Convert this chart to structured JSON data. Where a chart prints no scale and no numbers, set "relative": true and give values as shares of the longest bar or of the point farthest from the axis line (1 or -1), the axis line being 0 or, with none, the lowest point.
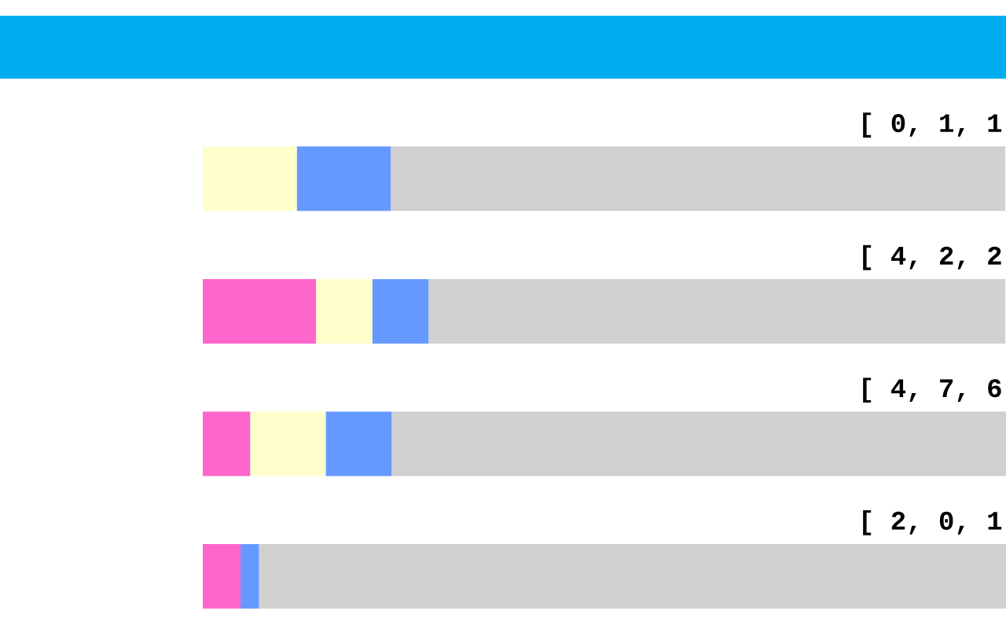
{
  "chart_data": {
    "type": "bar",
    "orientation": "horizontal",
    "stacked": true,
    "relative": true,
    "categories": [
      "[ 0, 1, 1",
      "[ 4, 2, 2",
      "[ 4, 7, 6",
      "[ 2, 0, 1"
    ],
    "series": [
      {
        "color": "#ff66cc",
        "values": [
          0,
          0.141,
          0.059,
          0.047
        ]
      },
      {
        "color": "#ffffcc",
        "values": [
          0.117,
          0.07,
          0.094,
          0
        ]
      },
      {
        "color": "#6699ff",
        "values": [
          0.117,
          0.07,
          0.082,
          0.023
        ]
      },
      {
        "color": "#d0d0d0",
        "values": [
          0.765,
          0.718,
          0.765,
          0.93
        ]
      }
    ]
  }
}
